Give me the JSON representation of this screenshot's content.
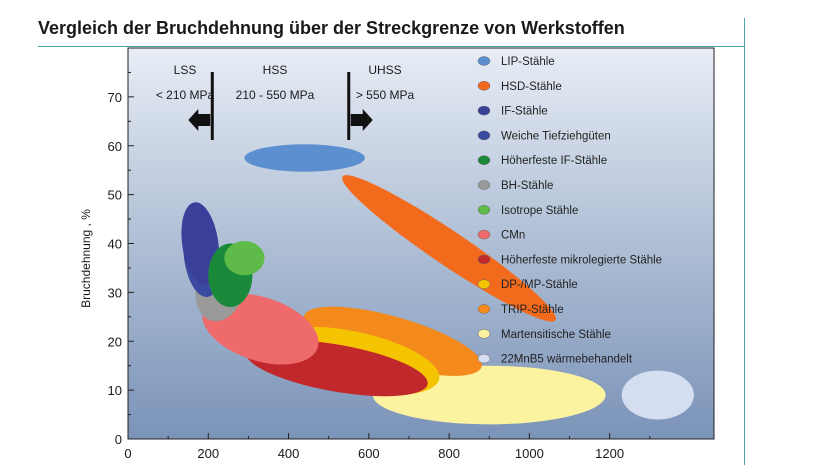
{
  "page": {
    "title": "Vergleich der Bruchdehnung über der Streckgrenze von Werkstoffen"
  },
  "chart_data": {
    "type": "scatter",
    "title": "Vergleich der Bruchdehnung über der Streckgrenze von Werkstoffen",
    "xlabel": "",
    "ylabel": "Bruchdehnung , %",
    "xlim": [
      0,
      1460
    ],
    "ylim": [
      0,
      80
    ],
    "x_ticks": [
      "0",
      "200",
      "400",
      "600",
      "800",
      "1000",
      "1200"
    ],
    "y_ticks": [
      "0",
      "10",
      "20",
      "30",
      "40",
      "50",
      "60",
      "70"
    ],
    "zones": [
      {
        "name": "LSS",
        "range": "< 210 MPa"
      },
      {
        "name": "HSS",
        "range": "210 - 550 MPa"
      },
      {
        "name": "UHSS",
        "range": "> 550 MPa"
      }
    ],
    "zone_boundaries": [
      210,
      550
    ],
    "legend_position": "right",
    "series": [
      {
        "name": "LIP-Stähle",
        "color": "#5b8fd0",
        "cx": 440,
        "cy": 57.5,
        "rx": 150,
        "ry": 2.8,
        "angle": 0
      },
      {
        "name": "HSD-Stähle",
        "color": "#f26b1d",
        "cx": 800,
        "cy": 39,
        "rx": 320,
        "ry": 3.5,
        "angle": 34
      },
      {
        "name": "IF-Stähle",
        "color": "#3a3f9a",
        "cx": 180,
        "cy": 40,
        "rx": 45,
        "ry": 8.5,
        "angle": -8
      },
      {
        "name": "Weiche Tiefziehgüten",
        "color": "#3a4aa0",
        "cx": 185,
        "cy": 37,
        "rx": 45,
        "ry": 8,
        "angle": -8
      },
      {
        "name": "Höherfeste IF-Stähle",
        "color": "#1a8a3a",
        "cx": 255,
        "cy": 33.5,
        "rx": 55,
        "ry": 6.5,
        "angle": 0
      },
      {
        "name": "BH-Stähle",
        "color": "#9a9a9a",
        "cx": 230,
        "cy": 31,
        "rx": 60,
        "ry": 7,
        "angle": 15
      },
      {
        "name": "Isotrope Stähle",
        "color": "#5ebb4a",
        "cx": 290,
        "cy": 37,
        "rx": 50,
        "ry": 3.5,
        "angle": 0
      },
      {
        "name": "CMn",
        "color": "#ef6a6a",
        "cx": 330,
        "cy": 22.5,
        "rx": 150,
        "ry": 6.5,
        "angle": 18
      },
      {
        "name": "Höherfeste mikrolegierte Stähle",
        "color": "#c0282b",
        "cx": 520,
        "cy": 14.5,
        "rx": 230,
        "ry": 4.8,
        "angle": 10
      },
      {
        "name": "DP-/MP-Stähle",
        "color": "#f5c400",
        "cx": 560,
        "cy": 16,
        "rx": 220,
        "ry": 6,
        "angle": 12
      },
      {
        "name": "TRIP-Stähle",
        "color": "#f58a1c",
        "cx": 660,
        "cy": 20,
        "rx": 230,
        "ry": 5,
        "angle": 16
      },
      {
        "name": "Martensitische Stähle",
        "color": "#fbf3a0",
        "cx": 900,
        "cy": 9,
        "rx": 290,
        "ry": 6,
        "angle": 0
      },
      {
        "name": "22MnB5 wärmebehandelt",
        "color": "#d5def0",
        "cx": 1320,
        "cy": 9,
        "rx": 90,
        "ry": 5,
        "angle": 0
      }
    ]
  }
}
